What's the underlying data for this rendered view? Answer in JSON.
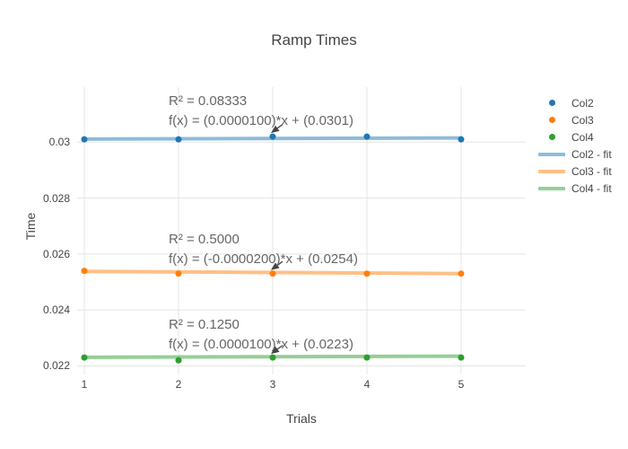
{
  "chart_data": {
    "type": "scatter",
    "title": "Ramp Times",
    "xlabel": "Trials",
    "ylabel": "Time",
    "x": [
      1,
      2,
      3,
      4,
      5
    ],
    "x_tick_labels": [
      "1",
      "2",
      "3",
      "4",
      "5"
    ],
    "x_tick_values": [
      1,
      2,
      3,
      4,
      5
    ],
    "y_tick_labels": [
      "0.022",
      "0.024",
      "0.026",
      "0.028",
      "0.03"
    ],
    "y_tick_values": [
      0.022,
      0.024,
      0.026,
      0.028,
      0.03
    ],
    "xlim": [
      0.924,
      5.686
    ],
    "ylim": [
      0.021695,
      0.031968
    ],
    "grid": true,
    "legend_position": "right",
    "background_color": "#ffffff",
    "grid_color": "#e5e5e5",
    "text_color": "#444444",
    "annotation_text_color": "#666666",
    "arrow_color": "#444444",
    "series": [
      {
        "name": "Col2",
        "mode": "markers",
        "color": "#1f77b4",
        "values": [
          0.0301,
          0.0301,
          0.0302,
          0.0302,
          0.0301
        ]
      },
      {
        "name": "Col3",
        "mode": "markers",
        "color": "#ff7f0e",
        "values": [
          0.0254,
          0.0253,
          0.0253,
          0.0253,
          0.0253
        ]
      },
      {
        "name": "Col4",
        "mode": "markers",
        "color": "#2ca02c",
        "values": [
          0.0223,
          0.0222,
          0.0223,
          0.0223,
          0.0223
        ]
      },
      {
        "name": "Col2 - fit",
        "mode": "line",
        "color": "rgba(31,119,180,0.5)",
        "slope": 1e-05,
        "intercept": 0.0301
      },
      {
        "name": "Col3 - fit",
        "mode": "line",
        "color": "rgba(255,127,14,0.5)",
        "slope": -2e-05,
        "intercept": 0.0254
      },
      {
        "name": "Col4 - fit",
        "mode": "line",
        "color": "rgba(44,160,44,0.5)",
        "slope": 1e-05,
        "intercept": 0.0223
      }
    ],
    "annotations": [
      {
        "r2": "R² = 0.08333",
        "fx": "f(x) = (0.0000100)*x + (0.0301)",
        "arrow_x": 3,
        "target_series": "Col2"
      },
      {
        "r2": "R² = 0.5000",
        "fx": "f(x) = (-0.0000200)*x + (0.0254)",
        "arrow_x": 3,
        "target_series": "Col3"
      },
      {
        "r2": "R² = 0.1250",
        "fx": "f(x) = (0.0000100)*x + (0.0223)",
        "arrow_x": 3,
        "target_series": "Col4"
      }
    ]
  }
}
